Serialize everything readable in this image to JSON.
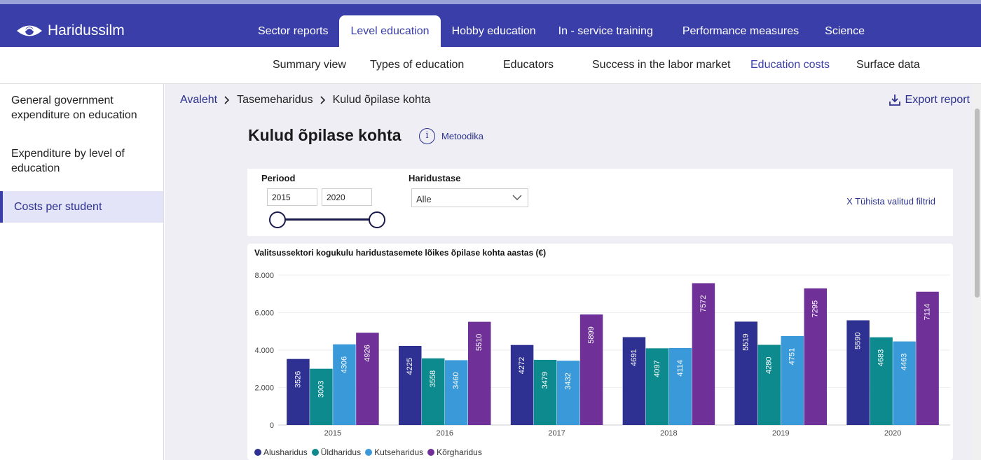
{
  "app": {
    "name": "Haridussilm"
  },
  "top_tabs": [
    {
      "label": "Sector reports",
      "active": false
    },
    {
      "label": "Level education",
      "active": true
    },
    {
      "label": "Hobby education",
      "active": false
    },
    {
      "label": "In - service training",
      "active": false
    },
    {
      "label": "Performance measures",
      "active": false
    },
    {
      "label": "Science",
      "active": false
    }
  ],
  "sub_nav": [
    {
      "label": "Summary view",
      "active": false
    },
    {
      "label": "Types of education",
      "active": false
    },
    {
      "label": "Educators",
      "active": false
    },
    {
      "label": "Success in the labor market",
      "active": false
    },
    {
      "label": "Education costs",
      "active": true
    },
    {
      "label": "Surface data",
      "active": false
    }
  ],
  "sidebar": {
    "items": [
      {
        "label": "General government expenditure on education",
        "active": false
      },
      {
        "label": "Expenditure by level of education",
        "active": false
      },
      {
        "label": "Costs per student",
        "active": true
      }
    ]
  },
  "breadcrumb": {
    "home": "Avaleht",
    "level": "Tasemeharidus",
    "current": "Kulud õpilase kohta"
  },
  "export_label": "Export report",
  "page_title": "Kulud õpilase kohta",
  "method": {
    "icon_letter": "i",
    "label": "Metoodika"
  },
  "filters": {
    "period_label": "Periood",
    "period_from": "2015",
    "period_to": "2020",
    "level_label": "Haridustase",
    "level_value": "Alle",
    "clear_label": "X Tühista valitud filtrid"
  },
  "colors": {
    "Alusharidus": "#2e3192",
    "Üldharidus": "#0c8a8e",
    "Kutseharidus": "#3a9ad9",
    "Kõrgharidus": "#6f3198"
  },
  "chart_data": {
    "type": "bar",
    "title": "Valitsussektori kogukulu haridustasemete lõikes õpilase kohta aastas (€)",
    "xlabel": "",
    "ylabel": "",
    "ylim": [
      0,
      8000
    ],
    "yticks": [
      "0",
      "2.000",
      "4.000",
      "6.000",
      "8.000"
    ],
    "ytick_values": [
      0,
      2000,
      4000,
      6000,
      8000
    ],
    "categories": [
      "2015",
      "2016",
      "2017",
      "2018",
      "2019",
      "2020"
    ],
    "legend_position": "bottom-left",
    "grid": true,
    "series": [
      {
        "name": "Alusharidus",
        "values": [
          3526,
          4225,
          4272,
          4691,
          5519,
          5590
        ]
      },
      {
        "name": "Üldharidus",
        "values": [
          3003,
          3558,
          3479,
          4097,
          4280,
          4683
        ]
      },
      {
        "name": "Kutseharidus",
        "values": [
          4306,
          3460,
          3432,
          4114,
          4751,
          4463
        ]
      },
      {
        "name": "Kõrgharidus",
        "values": [
          4926,
          5510,
          5899,
          7572,
          7295,
          7114
        ]
      }
    ]
  }
}
